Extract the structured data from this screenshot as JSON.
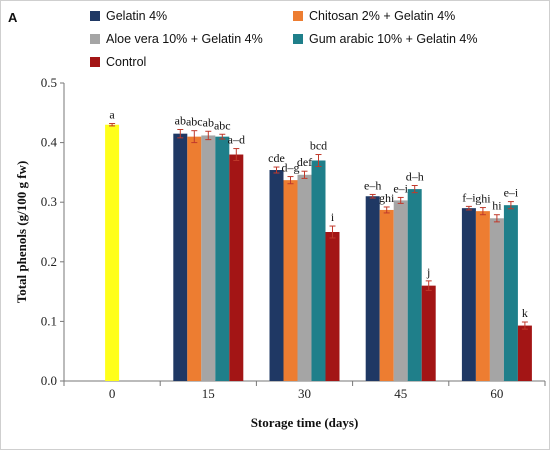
{
  "panel_label": "A",
  "chart_data": {
    "type": "bar",
    "xlabel": "Storage time (days)",
    "ylabel": "Total phenols (g/100 g fw)",
    "ylim": [
      0,
      0.5
    ],
    "yticks": [
      "0.0",
      "0.1",
      "0.2",
      "0.3",
      "0.4",
      "0.5"
    ],
    "categories": [
      "0",
      "15",
      "30",
      "45",
      "60"
    ],
    "legend_position": "top",
    "day0": {
      "value": 0.43,
      "error": 0.002,
      "label": "a",
      "color": "#ffff1a"
    },
    "series": [
      {
        "name": "Gelatin 4%",
        "color": "#1f3864",
        "values": [
          null,
          0.415,
          0.354,
          0.31,
          0.29
        ],
        "errors": [
          null,
          0.007,
          0.005,
          0.003,
          0.003
        ],
        "labels": [
          "",
          "ab",
          "cde",
          "e–h",
          "f–i"
        ]
      },
      {
        "name": "Chitosan 2% + Gelatin 4%",
        "color": "#ed7d31",
        "values": [
          null,
          0.41,
          0.337,
          0.287,
          0.285
        ],
        "errors": [
          null,
          0.01,
          0.006,
          0.005,
          0.006
        ],
        "labels": [
          "",
          "abc",
          "d–g",
          "ghi",
          "ghi"
        ]
      },
      {
        "name": "Aloe vera 10% + Gelatin 4%",
        "color": "#a5a5a5",
        "values": [
          null,
          0.412,
          0.346,
          0.303,
          0.273
        ],
        "errors": [
          null,
          0.007,
          0.006,
          0.005,
          0.006
        ],
        "labels": [
          "",
          "ab",
          "def",
          "e–i",
          "hi"
        ]
      },
      {
        "name": "Gum arabic 10% + Gelatin 4%",
        "color": "#1f7f8a",
        "values": [
          null,
          0.41,
          0.37,
          0.322,
          0.295
        ],
        "errors": [
          null,
          0.004,
          0.01,
          0.006,
          0.006
        ],
        "labels": [
          "",
          "abc",
          "bcd",
          "d–h",
          "e–i"
        ]
      },
      {
        "name": "Control",
        "color": "#a31515",
        "values": [
          null,
          0.38,
          0.25,
          0.16,
          0.093
        ],
        "errors": [
          null,
          0.01,
          0.01,
          0.008,
          0.006
        ],
        "labels": [
          "",
          "a–d",
          "i",
          "j",
          "k"
        ]
      }
    ]
  }
}
